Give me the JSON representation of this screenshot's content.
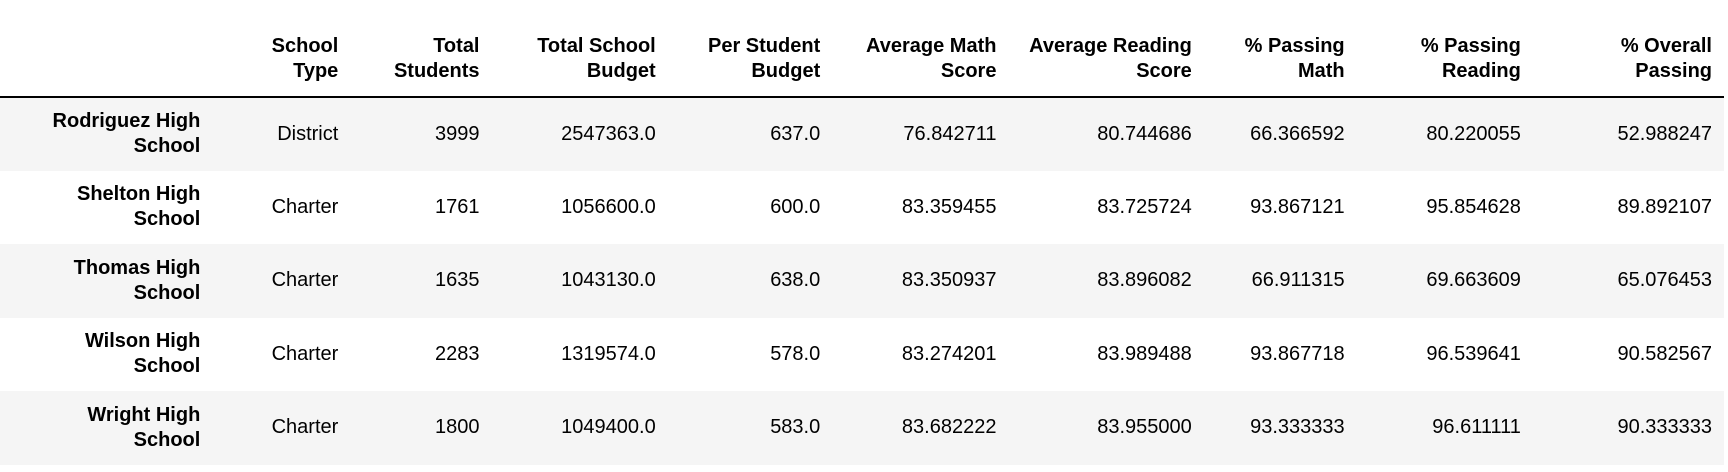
{
  "table": {
    "columns": [
      [
        "School",
        "Type"
      ],
      [
        "Total",
        "Students"
      ],
      [
        "Total School",
        "Budget"
      ],
      [
        "Per Student",
        "Budget"
      ],
      [
        "Average Math",
        "Score"
      ],
      [
        "Average Reading",
        "Score"
      ],
      [
        "% Passing",
        "Math"
      ],
      [
        "% Passing",
        "Reading"
      ],
      [
        "% Overall",
        "Passing"
      ]
    ],
    "rows": [
      {
        "name": [
          "Rodriguez High",
          "School"
        ],
        "cells": [
          "District",
          "3999",
          "2547363.0",
          "637.0",
          "76.842711",
          "80.744686",
          "66.366592",
          "80.220055",
          "52.988247"
        ]
      },
      {
        "name": [
          "Shelton High",
          "School"
        ],
        "cells": [
          "Charter",
          "1761",
          "1056600.0",
          "600.0",
          "83.359455",
          "83.725724",
          "93.867121",
          "95.854628",
          "89.892107"
        ]
      },
      {
        "name": [
          "Thomas High",
          "School"
        ],
        "cells": [
          "Charter",
          "1635",
          "1043130.0",
          "638.0",
          "83.350937",
          "83.896082",
          "66.911315",
          "69.663609",
          "65.076453"
        ]
      },
      {
        "name": [
          "Wilson High",
          "School"
        ],
        "cells": [
          "Charter",
          "2283",
          "1319574.0",
          "578.0",
          "83.274201",
          "83.989488",
          "93.867718",
          "96.539641",
          "90.582567"
        ]
      },
      {
        "name": [
          "Wright High",
          "School"
        ],
        "cells": [
          "Charter",
          "1800",
          "1049400.0",
          "583.0",
          "83.682222",
          "83.955000",
          "93.333333",
          "96.611111",
          "90.333333"
        ]
      }
    ]
  }
}
